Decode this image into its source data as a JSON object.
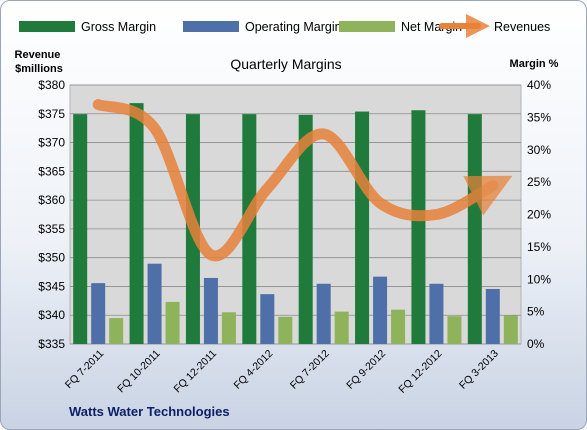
{
  "chart_data": {
    "type": "bar",
    "title": "Quarterly Margins",
    "categories": [
      "FQ 7-2011",
      "FQ 10-2011",
      "FQ 12-2011",
      "FQ 4-2012",
      "FQ 7-2012",
      "FQ 9-2012",
      "FQ 12-2012",
      "FQ 3-2013"
    ],
    "series": [
      {
        "name": "Gross Margin",
        "type": "bar",
        "axis": "right",
        "color": "#1f7a3c",
        "values": [
          35.5,
          37.2,
          35.5,
          35.5,
          35.4,
          35.9,
          36.1,
          35.5
        ]
      },
      {
        "name": "Operating Margin",
        "type": "bar",
        "axis": "right",
        "color": "#4f6fa8",
        "values": [
          9.4,
          12.4,
          10.2,
          7.7,
          9.3,
          10.4,
          9.3,
          8.5
        ]
      },
      {
        "name": "Net Margin",
        "type": "bar",
        "axis": "right",
        "color": "#8fb35a",
        "values": [
          4.0,
          6.5,
          4.9,
          4.2,
          5.0,
          5.3,
          4.3,
          4.4
        ]
      },
      {
        "name": "Revenues",
        "type": "line",
        "axis": "left",
        "color": "#e8823a",
        "values": [
          376.6,
          372.5,
          350.5,
          362.0,
          371.5,
          359.5,
          357.5,
          362.5
        ]
      }
    ],
    "ylabel_left": "Revenue $millions",
    "ylabel_right": "Margin %",
    "y_left": {
      "min": 335,
      "max": 380,
      "step": 5,
      "labels": [
        "$335",
        "$340",
        "$345",
        "$350",
        "$355",
        "$360",
        "$365",
        "$370",
        "$375",
        "$380"
      ]
    },
    "y_right": {
      "min": 0,
      "max": 40,
      "step": 5,
      "labels": [
        "0%",
        "5%",
        "10%",
        "15%",
        "20%",
        "25%",
        "30%",
        "35%",
        "40%"
      ]
    },
    "grid": true,
    "legend": "top",
    "footer": "Watts Water Technologies"
  }
}
